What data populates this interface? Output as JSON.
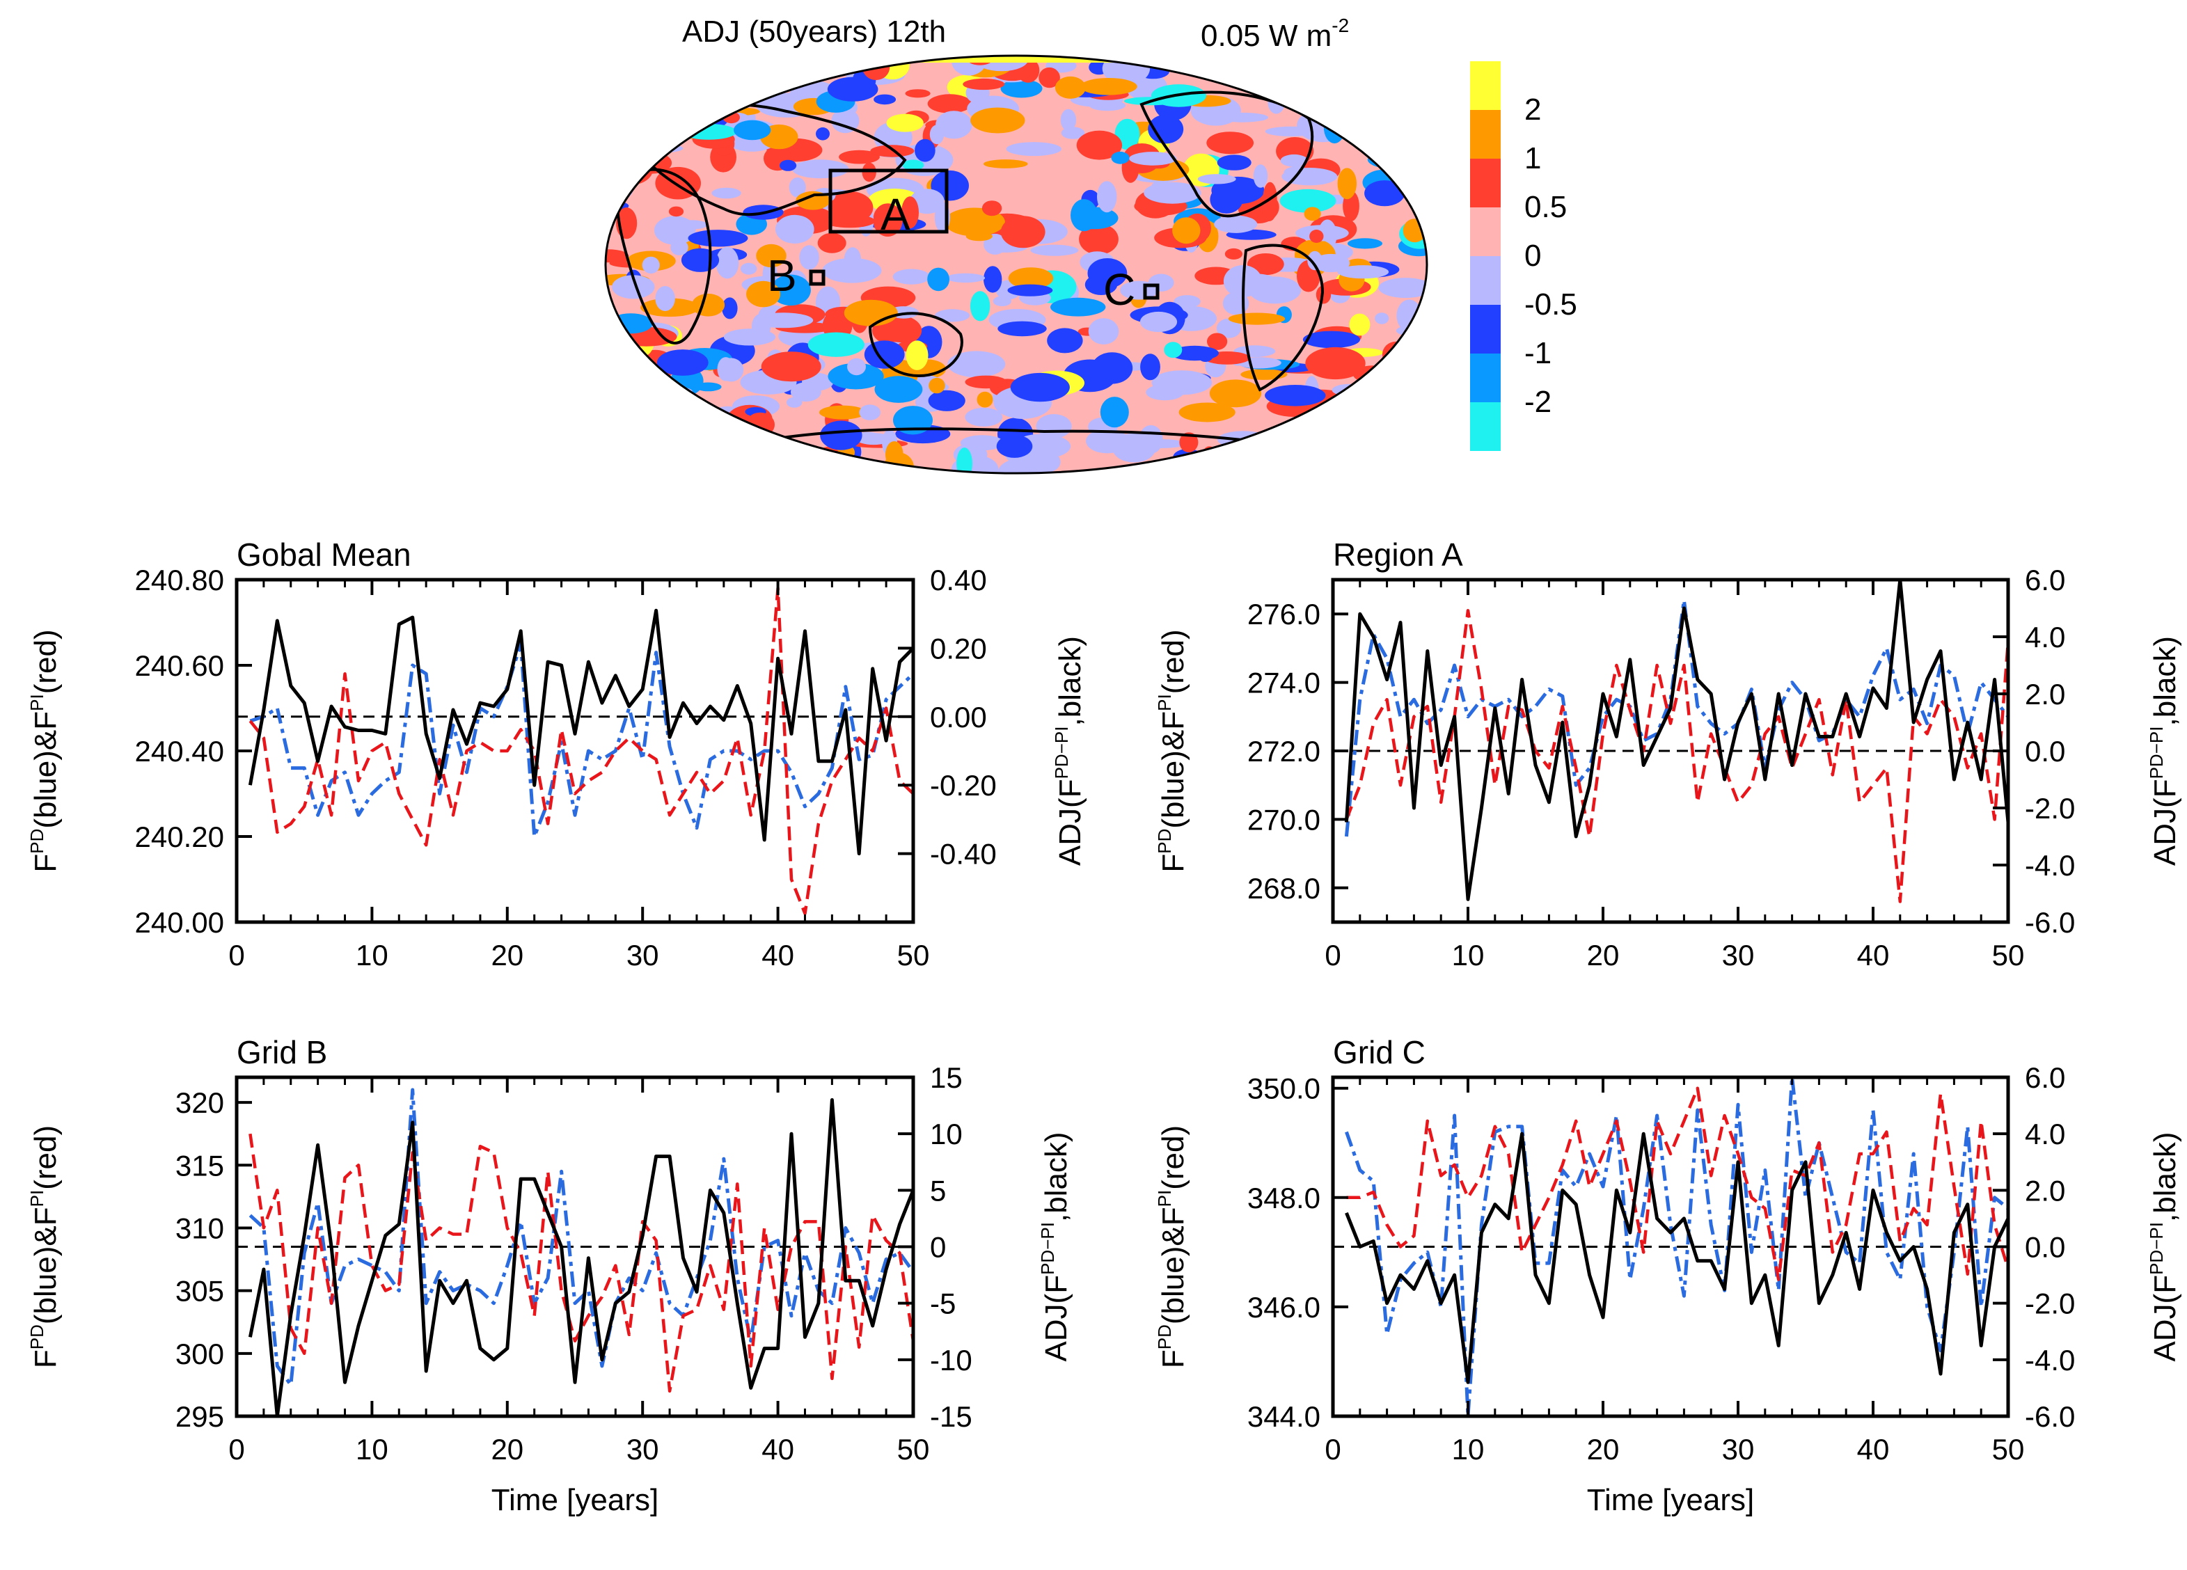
{
  "map": {
    "title": "ADJ (50years) 12th",
    "units_text": "0.05 W m",
    "units_exponent": "-2",
    "region_labels": [
      "A",
      "B",
      "C"
    ],
    "colorbar": {
      "labels": [
        "2",
        "1",
        "0.5",
        "0",
        "-0.5",
        "-1",
        "-2"
      ],
      "colors": [
        "#ffff33",
        "#ff9900",
        "#ff3f2f",
        "#ffb3b3",
        "#b8b8ff",
        "#2240ff",
        "#0a99ff",
        "#1ff0f0"
      ]
    },
    "field_colors": [
      "#ffb3b3",
      "#b8b8ff",
      "#ff3f2f",
      "#2240ff",
      "#ff9900",
      "#0a99ff",
      "#1ff0f0",
      "#ffff33"
    ]
  },
  "x_axis": {
    "title": "Time [years]",
    "ticks": [
      "0",
      "10",
      "20",
      "30",
      "40",
      "50"
    ]
  },
  "series_colors": {
    "fpd": "#2a6be0",
    "fpi": "#e8161a",
    "adj": "#000000"
  },
  "chart_data": [
    {
      "type": "line",
      "title": "Gobal Mean",
      "x": [
        1,
        2,
        3,
        4,
        5,
        6,
        7,
        8,
        9,
        10,
        11,
        12,
        13,
        14,
        15,
        16,
        17,
        18,
        19,
        20,
        21,
        22,
        23,
        24,
        25,
        26,
        27,
        28,
        29,
        30,
        31,
        32,
        33,
        34,
        35,
        36,
        37,
        38,
        39,
        40,
        41,
        42,
        43,
        44,
        45,
        46,
        47,
        48,
        49,
        50
      ],
      "xlim": [
        0,
        50
      ],
      "left_ylim": [
        240.0,
        240.8
      ],
      "left_ticks": [
        "240.00",
        "240.20",
        "240.40",
        "240.60",
        "240.80"
      ],
      "right_ylim": [
        -0.6,
        0.4
      ],
      "right_ticks": [
        "-0.40",
        "-0.20",
        "0.00",
        "0.20",
        "0.40"
      ],
      "series": [
        {
          "name": "F_PD (blue)",
          "axis": "left",
          "values": [
            240.47,
            240.48,
            240.5,
            240.36,
            240.36,
            240.25,
            240.33,
            240.35,
            240.25,
            240.3,
            240.33,
            240.35,
            240.6,
            240.58,
            240.3,
            240.46,
            240.35,
            240.5,
            240.48,
            240.55,
            240.65,
            240.2,
            240.28,
            240.42,
            240.25,
            240.4,
            240.38,
            240.4,
            240.5,
            240.38,
            240.63,
            240.41,
            240.3,
            240.22,
            240.38,
            240.4,
            240.4,
            240.38,
            240.4,
            240.4,
            240.35,
            240.27,
            240.3,
            240.36,
            240.55,
            240.38,
            240.39,
            240.52,
            240.55,
            240.58
          ]
        },
        {
          "name": "F_PI (red)",
          "axis": "left",
          "values": [
            240.47,
            240.43,
            240.21,
            240.23,
            240.27,
            240.38,
            240.25,
            240.58,
            240.33,
            240.4,
            240.42,
            240.3,
            240.24,
            240.18,
            240.38,
            240.25,
            240.4,
            240.42,
            240.4,
            240.4,
            240.45,
            240.4,
            240.23,
            240.45,
            240.3,
            240.33,
            240.35,
            240.4,
            240.43,
            240.4,
            240.38,
            240.25,
            240.3,
            240.35,
            240.3,
            240.33,
            240.43,
            240.25,
            240.4,
            240.78,
            240.1,
            240.02,
            240.23,
            240.33,
            240.38,
            240.43,
            240.4,
            240.5,
            240.33,
            240.3
          ]
        },
        {
          "name": "ADJ (black)",
          "axis": "right",
          "values": [
            -0.2,
            0.02,
            0.28,
            0.09,
            0.04,
            -0.13,
            0.03,
            -0.03,
            -0.04,
            -0.04,
            -0.05,
            0.27,
            0.29,
            -0.05,
            -0.18,
            0.02,
            -0.08,
            0.04,
            0.03,
            0.08,
            0.25,
            -0.2,
            0.16,
            0.15,
            -0.05,
            0.16,
            0.04,
            0.12,
            0.03,
            0.08,
            0.31,
            -0.06,
            0.04,
            -0.02,
            0.03,
            -0.01,
            0.09,
            -0.02,
            -0.36,
            0.17,
            -0.05,
            0.25,
            -0.13,
            -0.13,
            0.02,
            -0.4,
            0.14,
            -0.07,
            0.16,
            0.2
          ]
        }
      ]
    },
    {
      "type": "line",
      "title": "Region A",
      "x": [
        1,
        2,
        3,
        4,
        5,
        6,
        7,
        8,
        9,
        10,
        11,
        12,
        13,
        14,
        15,
        16,
        17,
        18,
        19,
        20,
        21,
        22,
        23,
        24,
        25,
        26,
        27,
        28,
        29,
        30,
        31,
        32,
        33,
        34,
        35,
        36,
        37,
        38,
        39,
        40,
        41,
        42,
        43,
        44,
        45,
        46,
        47,
        48,
        49,
        50
      ],
      "xlim": [
        0,
        50
      ],
      "left_ylim": [
        267.0,
        277.0
      ],
      "left_ticks": [
        "268.0",
        "270.0",
        "272.0",
        "274.0",
        "276.0"
      ],
      "right_ylim": [
        -6.0,
        6.0
      ],
      "right_ticks": [
        "-6.0",
        "-4.0",
        "-2.0",
        "0.0",
        "2.0",
        "4.0",
        "6.0"
      ],
      "series": [
        {
          "name": "F_PD (blue)",
          "axis": "left",
          "values": [
            269.5,
            273.5,
            275.4,
            274.7,
            273.0,
            273.5,
            272.8,
            273.2,
            274.5,
            273.0,
            273.5,
            273.3,
            273.5,
            273.0,
            273.3,
            273.8,
            273.6,
            271.0,
            271.5,
            273.0,
            273.5,
            273.3,
            272.3,
            272.5,
            273.5,
            276.4,
            273.3,
            272.8,
            272.5,
            272.8,
            273.8,
            271.5,
            273.2,
            274.0,
            273.5,
            272.3,
            272.5,
            273.5,
            273.0,
            274.2,
            275.0,
            273.5,
            273.8,
            272.8,
            274.5,
            274.2,
            272.5,
            274.0,
            273.5,
            273.0
          ]
        },
        {
          "name": "F_PI (red)",
          "axis": "left",
          "values": [
            270.0,
            271.0,
            272.8,
            273.5,
            271.0,
            273.0,
            273.3,
            270.5,
            273.0,
            276.1,
            273.8,
            271.0,
            273.3,
            273.2,
            272.0,
            271.5,
            273.3,
            271.5,
            269.5,
            272.5,
            274.5,
            273.2,
            272.0,
            274.5,
            272.8,
            274.5,
            270.5,
            272.5,
            271.5,
            270.5,
            271.0,
            272.5,
            273.0,
            271.5,
            272.5,
            273.5,
            271.3,
            273.5,
            270.5,
            271.0,
            271.5,
            267.6,
            273.0,
            272.5,
            273.5,
            273.0,
            271.5,
            272.5,
            270.0,
            275.2
          ]
        },
        {
          "name": "ADJ (black)",
          "axis": "right",
          "values": [
            -2.5,
            4.8,
            4.0,
            2.5,
            4.5,
            -2.0,
            3.5,
            -0.5,
            1.2,
            -5.2,
            -2.0,
            1.5,
            -1.5,
            2.5,
            -0.5,
            -1.8,
            1.0,
            -3.0,
            -1.2,
            2.0,
            0.5,
            3.2,
            -0.5,
            0.5,
            1.5,
            5.0,
            2.5,
            2.0,
            -1.0,
            1.0,
            2.0,
            -1.0,
            2.0,
            -0.5,
            2.0,
            0.5,
            0.5,
            2.0,
            0.5,
            2.2,
            1.5,
            6.0,
            1.0,
            2.5,
            3.5,
            -1.0,
            1.0,
            -1.0,
            2.5,
            -2.5
          ]
        }
      ]
    },
    {
      "type": "line",
      "title": "Grid B",
      "x": [
        1,
        2,
        3,
        4,
        5,
        6,
        7,
        8,
        9,
        10,
        11,
        12,
        13,
        14,
        15,
        16,
        17,
        18,
        19,
        20,
        21,
        22,
        23,
        24,
        25,
        26,
        27,
        28,
        29,
        30,
        31,
        32,
        33,
        34,
        35,
        36,
        37,
        38,
        39,
        40,
        41,
        42,
        43,
        44,
        45,
        46,
        47,
        48,
        49,
        50
      ],
      "xlim": [
        0,
        50
      ],
      "left_ylim": [
        295,
        322
      ],
      "left_ticks": [
        "295",
        "300",
        "305",
        "310",
        "315",
        "320"
      ],
      "right_ylim": [
        -15,
        15
      ],
      "right_ticks": [
        "-15",
        "-10",
        "-5",
        "0",
        "5",
        "10",
        "15"
      ],
      "series": [
        {
          "name": "F_PD (blue)",
          "axis": "left",
          "values": [
            311.0,
            310.0,
            299.0,
            297.5,
            308.0,
            312.0,
            304.0,
            307.0,
            307.5,
            307.0,
            306.5,
            305.0,
            321.0,
            304.0,
            306.5,
            305.0,
            305.5,
            305.0,
            304.0,
            307.0,
            310.5,
            304.0,
            306.0,
            314.5,
            304.0,
            305.0,
            299.0,
            304.0,
            306.0,
            305.0,
            308.0,
            304.0,
            303.0,
            306.0,
            309.0,
            315.5,
            306.0,
            301.0,
            308.5,
            309.0,
            303.0,
            308.0,
            305.0,
            304.0,
            310.0,
            308.0,
            304.0,
            307.5,
            308.0,
            306.5
          ]
        },
        {
          "name": "F_PI (red)",
          "axis": "left",
          "values": [
            317.5,
            310.0,
            313.0,
            302.0,
            300.0,
            310.0,
            304.0,
            314.0,
            315.0,
            307.0,
            305.0,
            305.5,
            316.0,
            309.0,
            310.0,
            309.5,
            309.5,
            316.5,
            316.0,
            310.0,
            308.0,
            303.0,
            314.5,
            305.0,
            301.0,
            303.0,
            304.5,
            307.0,
            301.5,
            310.5,
            309.0,
            297.0,
            303.0,
            303.5,
            307.0,
            303.5,
            313.5,
            299.0,
            310.0,
            303.5,
            308.5,
            310.5,
            310.5,
            298.0,
            308.5,
            300.5,
            311.0,
            309.0,
            308.0,
            301.0
          ]
        },
        {
          "name": "ADJ (black)",
          "axis": "right",
          "values": [
            -8.0,
            -2.0,
            -15.0,
            -6.0,
            1.0,
            9.0,
            0.0,
            -12.0,
            -7.0,
            -3.0,
            1.0,
            2.0,
            11.0,
            -11.0,
            -3.0,
            -5.0,
            -3.0,
            -9.0,
            -10.0,
            -9.0,
            6.0,
            6.0,
            3.0,
            0.0,
            -12.0,
            -1.0,
            -10.0,
            -5.0,
            -4.0,
            1.0,
            8.0,
            8.0,
            -1.0,
            -4.0,
            5.0,
            3.0,
            -5.0,
            -12.5,
            -9.0,
            -9.0,
            10.0,
            -8.0,
            -5.0,
            13.0,
            -3.0,
            -3.0,
            -7.0,
            -2.0,
            2.0,
            5.0
          ]
        }
      ]
    },
    {
      "type": "line",
      "title": "Grid C",
      "x": [
        1,
        2,
        3,
        4,
        5,
        6,
        7,
        8,
        9,
        10,
        11,
        12,
        13,
        14,
        15,
        16,
        17,
        18,
        19,
        20,
        21,
        22,
        23,
        24,
        25,
        26,
        27,
        28,
        29,
        30,
        31,
        32,
        33,
        34,
        35,
        36,
        37,
        38,
        39,
        40,
        41,
        42,
        43,
        44,
        45,
        46,
        47,
        48,
        49,
        50
      ],
      "xlim": [
        0,
        50
      ],
      "left_ylim": [
        344.0,
        350.2
      ],
      "left_ticks": [
        "344.0",
        "346.0",
        "348.0",
        "350.0"
      ],
      "right_ylim": [
        -6.0,
        6.0
      ],
      "right_ticks": [
        "-6.0",
        "-4.0",
        "-2.0",
        "0.0",
        "2.0",
        "4.0",
        "6.0"
      ],
      "series": [
        {
          "name": "F_PD (blue)",
          "axis": "left",
          "values": [
            349.2,
            348.5,
            348.3,
            345.5,
            346.5,
            346.8,
            347.0,
            346.0,
            349.5,
            344.0,
            347.5,
            349.2,
            349.3,
            349.3,
            346.8,
            346.8,
            348.5,
            348.2,
            348.8,
            348.2,
            349.5,
            346.5,
            347.8,
            349.5,
            347.5,
            346.2,
            349.6,
            347.5,
            346.3,
            349.7,
            347.0,
            348.5,
            346.3,
            350.2,
            348.0,
            349.0,
            348.0,
            347.0,
            346.8,
            349.6,
            347.0,
            346.5,
            348.8,
            346.0,
            345.2,
            347.0,
            349.3,
            346.0,
            348.0,
            347.8
          ]
        },
        {
          "name": "F_PI (red)",
          "axis": "left",
          "values": [
            348.0,
            348.0,
            348.1,
            347.5,
            347.1,
            347.3,
            349.4,
            348.4,
            348.6,
            348.0,
            348.4,
            349.3,
            348.8,
            347.0,
            347.5,
            348.0,
            348.6,
            349.4,
            348.2,
            348.8,
            349.4,
            348.3,
            347.0,
            349.4,
            348.8,
            349.4,
            350.0,
            348.4,
            349.5,
            348.8,
            348.0,
            347.8,
            346.5,
            348.5,
            348.4,
            349.0,
            347.0,
            347.5,
            348.8,
            348.8,
            349.2,
            347.2,
            347.8,
            347.5,
            349.9,
            348.2,
            346.6,
            349.4,
            347.5,
            346.7
          ]
        },
        {
          "name": "ADJ (black)",
          "axis": "right",
          "values": [
            1.2,
            0.0,
            0.2,
            -2.0,
            -1.0,
            -1.5,
            -0.5,
            -2.0,
            -1.0,
            -4.8,
            0.5,
            1.5,
            1.0,
            4.0,
            -1.0,
            -2.0,
            2.0,
            1.5,
            -1.0,
            -2.5,
            2.0,
            0.5,
            4.0,
            1.0,
            0.5,
            1.0,
            -0.5,
            -0.5,
            -1.5,
            3.0,
            -2.0,
            -1.0,
            -3.5,
            2.0,
            3.0,
            -2.0,
            -1.0,
            0.5,
            -1.5,
            2.0,
            0.5,
            -0.5,
            0.0,
            -1.5,
            -4.5,
            0.5,
            1.5,
            -3.5,
            0.0,
            1.0
          ]
        }
      ]
    }
  ]
}
